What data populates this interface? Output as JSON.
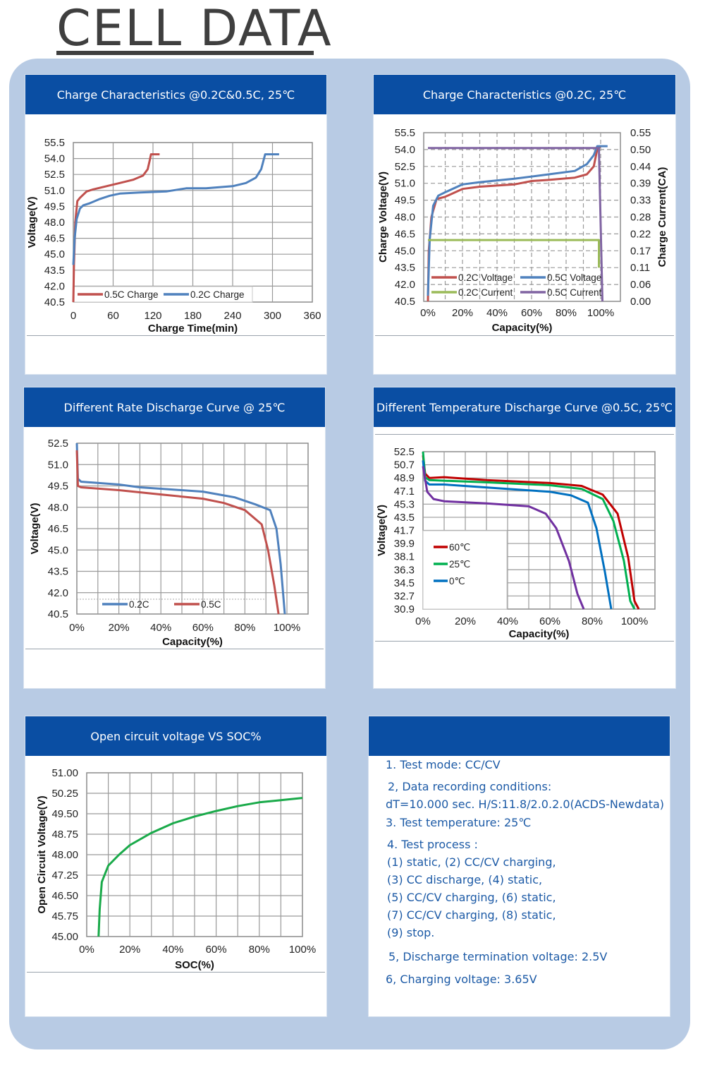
{
  "page_title": "CELL DATA",
  "notes": {
    "lines": [
      "1. Test mode: CC/CV",
      "2, Data recording conditions:",
      "dT=10.000 sec. H/S:11.8/2.0.2.0(ACDS-Newdata)",
      "3. Test temperature: 25℃",
      "4. Test process :",
      "(1) static, (2) CC/CV charging,",
      "(3) CC discharge, (4) static,",
      "(5) CC/CV charging, (6) static,",
      "(7) CC/CV charging, (8) static,",
      "(9) stop.",
      "5, Discharge termination voltage: 2.5V",
      "6, Charging voltage: 3.65V"
    ]
  },
  "chart_data": [
    {
      "type": "line",
      "title": "Charge Characteristics @0.2C&0.5C, 25℃",
      "xlabel": "Charge Time(min)",
      "ylabel": "Voltage(V)",
      "xlim": [
        0,
        360
      ],
      "ylim": [
        40.5,
        55.5
      ],
      "xticks": [
        "0",
        "60",
        "120",
        "180",
        "240",
        "300",
        "360"
      ],
      "yticks": [
        "40.5",
        "42.0",
        "43.5",
        "45.0",
        "46.5",
        "48.0",
        "49.5",
        "51.0",
        "52.5",
        "54.0",
        "55.5"
      ],
      "grid": true,
      "legend": "bottom-left",
      "series": [
        {
          "name": "0.5C Charge",
          "color": "#c0504d",
          "points": [
            [
              0,
              40.5
            ],
            [
              1,
              44
            ],
            [
              3,
              48
            ],
            [
              6,
              50
            ],
            [
              10,
              50.3
            ],
            [
              20,
              50.9
            ],
            [
              30,
              51.1
            ],
            [
              50,
              51.4
            ],
            [
              70,
              51.7
            ],
            [
              90,
              52.0
            ],
            [
              105,
              52.4
            ],
            [
              112,
              53.0
            ],
            [
              115,
              53.8
            ],
            [
              117,
              54.4
            ],
            [
              130,
              54.4
            ]
          ]
        },
        {
          "name": "0.2C Charge",
          "color": "#4f81bd",
          "points": [
            [
              0,
              44
            ],
            [
              2,
              46.5
            ],
            [
              5,
              48.3
            ],
            [
              10,
              49.3
            ],
            [
              15,
              49.6
            ],
            [
              25,
              49.8
            ],
            [
              40,
              50.2
            ],
            [
              55,
              50.5
            ],
            [
              70,
              50.7
            ],
            [
              100,
              50.8
            ],
            [
              140,
              50.9
            ],
            [
              170,
              51.2
            ],
            [
              200,
              51.2
            ],
            [
              240,
              51.4
            ],
            [
              260,
              51.7
            ],
            [
              275,
              52.2
            ],
            [
              283,
              53.0
            ],
            [
              289,
              54.4
            ],
            [
              310,
              54.4
            ]
          ]
        }
      ]
    },
    {
      "type": "line",
      "title": "Charge Characteristics @0.2C, 25℃",
      "xlabel": "Capacity(%)",
      "ylabel": "Charge Voltage(V)",
      "ylabel_right": "Charge Current(CA)",
      "xlim": [
        0,
        100
      ],
      "ylim": [
        40.5,
        55.5
      ],
      "ylim_right": [
        0,
        0.55
      ],
      "xticks": [
        "0%",
        "20%",
        "40%",
        "60%",
        "80%",
        "100%"
      ],
      "yticks": [
        "40.5",
        "42.0",
        "43.5",
        "45.0",
        "46.5",
        "48.0",
        "49.5",
        "51.0",
        "52.5",
        "54.0",
        "55.5"
      ],
      "yticks_right": [
        "0.00",
        "0.06",
        "0.11",
        "0.17",
        "0.22",
        "0.28",
        "0.33",
        "0.39",
        "0.44",
        "0.50",
        "0.55"
      ],
      "grid": true,
      "legend": "bottom",
      "series": [
        {
          "name": "0.2C Voltage",
          "color": "#c0504d",
          "axis": "left",
          "points": [
            [
              0,
              40.5
            ],
            [
              0.5,
              45
            ],
            [
              2,
              48
            ],
            [
              5,
              49.6
            ],
            [
              10,
              49.8
            ],
            [
              20,
              50.5
            ],
            [
              30,
              50.7
            ],
            [
              50,
              50.9
            ],
            [
              60,
              51.2
            ],
            [
              70,
              51.3
            ],
            [
              85,
              51.5
            ],
            [
              92,
              51.8
            ],
            [
              96,
              52.5
            ],
            [
              98,
              54.0
            ],
            [
              100,
              54.3
            ]
          ]
        },
        {
          "name": "0.5C Voltage",
          "color": "#4f81bd",
          "axis": "left",
          "points": [
            [
              0,
              41
            ],
            [
              1,
              46
            ],
            [
              3,
              49
            ],
            [
              6,
              49.9
            ],
            [
              10,
              50.2
            ],
            [
              20,
              50.9
            ],
            [
              30,
              51.1
            ],
            [
              50,
              51.4
            ],
            [
              70,
              51.8
            ],
            [
              85,
              52.1
            ],
            [
              92,
              52.7
            ],
            [
              96,
              53.5
            ],
            [
              98,
              54.3
            ],
            [
              104,
              54.3
            ]
          ]
        },
        {
          "name": "0.2C Current",
          "color": "#9bbb59",
          "axis": "right",
          "points": [
            [
              0,
              0.2
            ],
            [
              99,
              0.2
            ],
            [
              99,
              0.11
            ]
          ]
        },
        {
          "name": "0.5C Current",
          "color": "#8064a2",
          "axis": "right",
          "points": [
            [
              0,
              0.5
            ],
            [
              99,
              0.5
            ],
            [
              101,
              0.0
            ]
          ]
        }
      ]
    },
    {
      "type": "line",
      "title": "Different Rate Discharge Curve @ 25℃",
      "xlabel": "Capacity(%)",
      "ylabel": "Voltage(V)",
      "xlim": [
        0,
        100
      ],
      "ylim": [
        40.5,
        52.5
      ],
      "xticks": [
        "0%",
        "20%",
        "40%",
        "60%",
        "80%",
        "100%"
      ],
      "yticks": [
        "40.5",
        "42.0",
        "43.5",
        "45.0",
        "46.5",
        "48.0",
        "49.5",
        "51.0",
        "52.5"
      ],
      "grid": true,
      "legend": "bottom",
      "series": [
        {
          "name": "0.2C",
          "color": "#4f81bd",
          "points": [
            [
              0,
              52.5
            ],
            [
              0.5,
              50
            ],
            [
              2,
              49.8
            ],
            [
              20,
              49.6
            ],
            [
              30,
              49.4
            ],
            [
              40,
              49.3
            ],
            [
              60,
              49.1
            ],
            [
              75,
              48.7
            ],
            [
              85,
              48.2
            ],
            [
              92,
              47.8
            ],
            [
              95,
              46.5
            ],
            [
              97,
              44
            ],
            [
              99,
              40.5
            ]
          ]
        },
        {
          "name": "0.5C",
          "color": "#c0504d",
          "points": [
            [
              0,
              52.0
            ],
            [
              0.5,
              49.5
            ],
            [
              2,
              49.4
            ],
            [
              20,
              49.2
            ],
            [
              40,
              48.9
            ],
            [
              60,
              48.6
            ],
            [
              70,
              48.3
            ],
            [
              80,
              47.8
            ],
            [
              88,
              46.8
            ],
            [
              91,
              45
            ],
            [
              94,
              42.5
            ],
            [
              96,
              40.5
            ]
          ]
        }
      ]
    },
    {
      "type": "line",
      "title": "Different Temperature Discharge Curve @0.5C, 25℃",
      "xlabel": "Capacity(%)",
      "ylabel": "Voltage(V)",
      "xlim": [
        0,
        100
      ],
      "ylim": [
        30.9,
        52.5
      ],
      "xticks": [
        "0%",
        "20%",
        "40%",
        "60%",
        "80%",
        "100%"
      ],
      "yticks": [
        "30.9",
        "32.7",
        "34.5",
        "36.3",
        "38.1",
        "39.9",
        "41.7",
        "43.5",
        "45.3",
        "47.1",
        "48.9",
        "50.7",
        "52.5"
      ],
      "grid": true,
      "legend": "bottom-left",
      "series": [
        {
          "name": "60℃",
          "color": "#c00000",
          "points": [
            [
              0,
              52.0
            ],
            [
              1,
              49.5
            ],
            [
              3,
              48.9
            ],
            [
              10,
              49.0
            ],
            [
              30,
              48.6
            ],
            [
              60,
              48.2
            ],
            [
              75,
              47.8
            ],
            [
              85,
              46.6
            ],
            [
              92,
              44
            ],
            [
              97,
              38
            ],
            [
              100,
              32
            ],
            [
              102,
              30.9
            ]
          ]
        },
        {
          "name": "25℃",
          "color": "#00b050",
          "points": [
            [
              0,
              52.5
            ],
            [
              1,
              49.0
            ],
            [
              3,
              48.6
            ],
            [
              30,
              48.3
            ],
            [
              60,
              47.9
            ],
            [
              75,
              47.4
            ],
            [
              85,
              46.0
            ],
            [
              90,
              43
            ],
            [
              95,
              37.5
            ],
            [
              98,
              32
            ],
            [
              100,
              30.9
            ]
          ]
        },
        {
          "name": "0℃",
          "color": "#0070c0",
          "points": [
            [
              0,
              51.3
            ],
            [
              1,
              48.5
            ],
            [
              3,
              48.0
            ],
            [
              10,
              48.0
            ],
            [
              40,
              47.4
            ],
            [
              60,
              47.0
            ],
            [
              70,
              46.5
            ],
            [
              78,
              45.5
            ],
            [
              82,
              42
            ],
            [
              86,
              36
            ],
            [
              89,
              30.9
            ]
          ]
        },
        {
          "name": "",
          "color": "#7030a0",
          "points": [
            [
              0,
              50.5
            ],
            [
              2,
              47
            ],
            [
              5,
              46
            ],
            [
              10,
              45.7
            ],
            [
              30,
              45.4
            ],
            [
              50,
              45.0
            ],
            [
              58,
              44
            ],
            [
              63,
              42
            ],
            [
              69,
              37.5
            ],
            [
              73,
              33
            ],
            [
              76,
              30.9
            ]
          ]
        }
      ]
    },
    {
      "type": "line",
      "title": "Open circuit voltage VS SOC%",
      "xlabel": "SOC(%)",
      "ylabel": "Open Circuit Voltage(V)",
      "xlim": [
        0,
        100
      ],
      "ylim": [
        45.0,
        51.0
      ],
      "xticks": [
        "0%",
        "20%",
        "40%",
        "60%",
        "80%",
        "100%"
      ],
      "yticks": [
        "45.00",
        "45.75",
        "46.50",
        "47.25",
        "48.00",
        "48.75",
        "49.50",
        "50.25",
        "51.00"
      ],
      "grid": true,
      "legend": "none",
      "series": [
        {
          "name": "OCV",
          "color": "#1aaa4a",
          "points": [
            [
              5.5,
              45
            ],
            [
              6,
              46
            ],
            [
              7,
              47
            ],
            [
              10,
              47.6
            ],
            [
              15,
              48.0
            ],
            [
              20,
              48.35
            ],
            [
              30,
              48.8
            ],
            [
              40,
              49.15
            ],
            [
              50,
              49.4
            ],
            [
              60,
              49.6
            ],
            [
              70,
              49.78
            ],
            [
              80,
              49.92
            ],
            [
              90,
              50.0
            ],
            [
              100,
              50.08
            ]
          ]
        }
      ]
    }
  ]
}
